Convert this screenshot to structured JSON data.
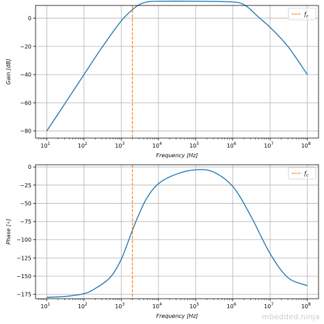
{
  "watermark": "mbedded.ninja",
  "chart_data": [
    {
      "type": "line",
      "xscale": "log",
      "xlim": [
        5,
        200000000
      ],
      "ylim": [
        -85,
        9
      ],
      "xlabel": "Frequency [Hz]",
      "ylabel": "Gain [dB]",
      "x_ticks": [
        10,
        100,
        1000,
        10000,
        100000,
        1000000,
        10000000,
        100000000
      ],
      "x_tick_labels": [
        [
          "10",
          "1"
        ],
        [
          "10",
          "2"
        ],
        [
          "10",
          "3"
        ],
        [
          "10",
          "4"
        ],
        [
          "10",
          "5"
        ],
        [
          "10",
          "6"
        ],
        [
          "10",
          "7"
        ],
        [
          "10",
          "8"
        ]
      ],
      "y_ticks": [
        0,
        -20,
        -40,
        -60,
        -80
      ],
      "y_tick_labels": [
        "0",
        "−20",
        "−40",
        "−60",
        "−80"
      ],
      "grid": true,
      "legend": {
        "position": "top-right",
        "entries": [
          "f_c"
        ]
      },
      "cutoff_frequency": 2000,
      "series": [
        {
          "name": "",
          "color": "#1f77b4",
          "style": "solid",
          "x": [
            10,
            30,
            100,
            300,
            1000,
            2000,
            3000,
            5000,
            10000,
            100000,
            1000000,
            2000000,
            3000000,
            5000000,
            10000000,
            30000000,
            100000000
          ],
          "y": [
            -80,
            -61,
            -40,
            -21,
            -2,
            6,
            9.5,
            11.5,
            12,
            12,
            11.5,
            9.5,
            6,
            0.5,
            -6.5,
            -20,
            -40
          ]
        },
        {
          "name": "f_c",
          "color": "#ff7f0e",
          "style": "dashed",
          "vertical_x": 2000
        }
      ]
    },
    {
      "type": "line",
      "xscale": "log",
      "xlim": [
        5,
        200000000
      ],
      "ylim": [
        -181,
        3
      ],
      "xlabel": "Frequency [Hz]",
      "ylabel": "Phase [∘]",
      "x_ticks": [
        10,
        100,
        1000,
        10000,
        100000,
        1000000,
        10000000,
        100000000
      ],
      "x_tick_labels": [
        [
          "10",
          "1"
        ],
        [
          "10",
          "2"
        ],
        [
          "10",
          "3"
        ],
        [
          "10",
          "4"
        ],
        [
          "10",
          "5"
        ],
        [
          "10",
          "6"
        ],
        [
          "10",
          "7"
        ],
        [
          "10",
          "8"
        ]
      ],
      "y_ticks": [
        0,
        -25,
        -50,
        -75,
        -100,
        -125,
        -150,
        -175
      ],
      "y_tick_labels": [
        "0",
        "−25",
        "−50",
        "−75",
        "−100",
        "−125",
        "−150",
        "−175"
      ],
      "grid": true,
      "legend": {
        "position": "top-right",
        "entries": [
          "f_c"
        ]
      },
      "cutoff_frequency": 2000,
      "series": [
        {
          "name": "",
          "color": "#1f77b4",
          "style": "solid",
          "x": [
            10,
            30,
            100,
            200,
            500,
            1000,
            2000,
            3000,
            5000,
            10000,
            30000,
            100000,
            300000,
            1000000,
            3000000,
            10000000,
            30000000,
            100000000
          ],
          "y": [
            -179,
            -178,
            -174,
            -167,
            -152,
            -127,
            -87,
            -65,
            -42,
            -23,
            -10,
            -4,
            -7,
            -27,
            -67,
            -119,
            -152,
            -163
          ]
        },
        {
          "name": "f_c",
          "color": "#ff7f0e",
          "style": "dashed",
          "vertical_x": 2000
        }
      ]
    }
  ]
}
